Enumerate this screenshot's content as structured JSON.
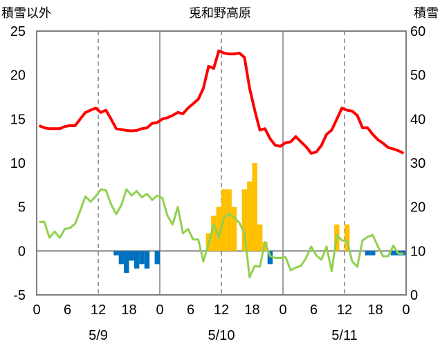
{
  "chart_data": {
    "type": "bar+line",
    "title": "兎和野高原",
    "left_axis_label": "積雪以外",
    "right_axis_label": "積雪",
    "left_ylim": [
      -5,
      25
    ],
    "left_ticks": [
      "25",
      "20",
      "15",
      "10",
      "5",
      "0",
      "-5"
    ],
    "right_ylim": [
      0,
      60
    ],
    "right_ticks": [
      "60",
      "50",
      "40",
      "30",
      "20",
      "10",
      "0"
    ],
    "x_ticks": [
      "0",
      "6",
      "12",
      "18",
      "0",
      "6",
      "12",
      "18",
      "0",
      "6",
      "12",
      "18",
      "0"
    ],
    "date_labels": [
      "5/9",
      "5/10",
      "5/11"
    ],
    "grid": "vertical dashed at 12h, solid at 0h",
    "hours_start": 0,
    "series": [
      {
        "color": "#ff0000",
        "style": "line",
        "axis": "right",
        "values": [
          38.5,
          38,
          37.8,
          37.8,
          37.8,
          38.3,
          38.5,
          38.5,
          40,
          41.5,
          42,
          42.5,
          41.5,
          42,
          40,
          37.8,
          37.6,
          37.4,
          37.3,
          37.4,
          37.8,
          38,
          39,
          39.2,
          40,
          40.3,
          40.8,
          41.5,
          41.2,
          42.5,
          43.5,
          44.5,
          47,
          52,
          51.5,
          55.5,
          55,
          54.8,
          54.8,
          55,
          54,
          47,
          42,
          37.5,
          37.8,
          35.5,
          34,
          33.8,
          34.6,
          34.8,
          36,
          34.8,
          33.7,
          32.2,
          32.5,
          34,
          36.5,
          37.5,
          40,
          42.5,
          42,
          41.8,
          40.8,
          38,
          38,
          36.5,
          35.3,
          34.5,
          33.5,
          33.2,
          32.8,
          32.2
        ]
      },
      {
        "color": "#92d050",
        "style": "line",
        "axis": "left",
        "values": [
          3.3,
          3.3,
          1.5,
          2.2,
          1.5,
          2.5,
          2.6,
          3.1,
          4.6,
          6.2,
          5.6,
          6.2,
          7,
          6.9,
          5.3,
          4.2,
          5.2,
          7,
          6.3,
          6.8,
          6.1,
          6.5,
          5.8,
          6.3,
          6,
          4,
          3,
          5,
          2,
          2.5,
          1.3,
          1.3,
          -1.2,
          0.8,
          3,
          1.5,
          3.8,
          4.2,
          3.8,
          3.2,
          2,
          -3,
          -1.7,
          -1.8,
          1,
          -0.6,
          -0.8,
          -0.8,
          -0.7,
          -2.2,
          -1.9,
          -1.7,
          -0.8,
          0.5,
          -0.5,
          -1,
          0.5,
          -2.3,
          1.8,
          1.2,
          1.1,
          -1.2,
          -1.8,
          1.2,
          1.6,
          1.8,
          0.5,
          -0.6,
          -0.6,
          0.6,
          -0.3,
          -0.3
        ]
      },
      {
        "color": "#ffc000",
        "style": "bar",
        "axis": "left",
        "values": [
          0,
          0,
          0,
          0,
          0,
          0,
          0,
          0,
          0,
          0,
          0,
          0,
          0,
          0,
          0,
          0,
          0,
          0,
          0,
          0,
          0,
          0,
          0,
          0,
          0,
          0,
          0,
          0,
          0,
          0,
          0,
          0,
          0,
          2,
          4,
          5,
          7,
          7,
          5,
          0,
          7,
          7.9,
          10,
          3,
          1,
          0,
          0,
          0,
          0,
          0,
          0,
          0,
          0,
          0,
          0,
          0,
          0,
          0,
          3,
          0,
          3,
          0,
          0,
          0,
          0,
          0,
          0,
          0,
          0,
          0,
          0,
          0
        ]
      },
      {
        "color": "#0070c0",
        "style": "bar",
        "axis": "left",
        "values": [
          0,
          0,
          0,
          0,
          0,
          0,
          0,
          0,
          0,
          0,
          0,
          0,
          0,
          0,
          0,
          -0.5,
          -1.5,
          -2.5,
          -1.1,
          -2,
          -1.5,
          -2,
          0,
          -1.5,
          0,
          0,
          0,
          0,
          0,
          0,
          0,
          0,
          0,
          0,
          0,
          0,
          0,
          0,
          0,
          0,
          0,
          0,
          0,
          0,
          0,
          -1.5,
          0,
          0,
          0,
          0,
          0,
          0,
          0,
          0,
          0,
          0,
          0,
          0,
          0,
          0,
          0,
          0,
          0,
          0,
          -0.5,
          -0.5,
          0,
          0,
          0,
          -0.5,
          -0.5,
          -0.5
        ]
      }
    ]
  }
}
